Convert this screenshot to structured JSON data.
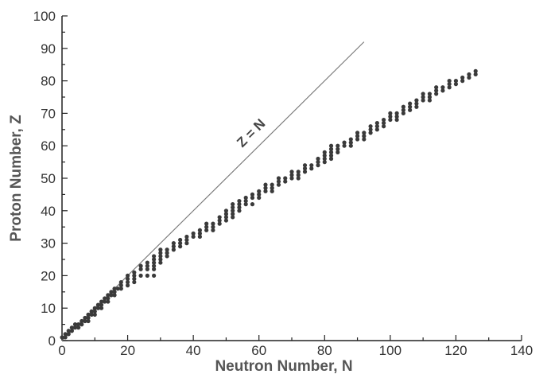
{
  "chart_data": {
    "type": "scatter",
    "title": "",
    "xlabel": "Neutron Number, N",
    "ylabel": "Proton Number, Z",
    "xlim": [
      0,
      140
    ],
    "ylim": [
      0,
      100
    ],
    "xticks": [
      "0",
      "20",
      "40",
      "60",
      "80",
      "100",
      "120",
      "140"
    ],
    "yticks": [
      "0",
      "10",
      "20",
      "30",
      "40",
      "50",
      "60",
      "70",
      "80",
      "90",
      "100"
    ],
    "grid": false,
    "reference_line": {
      "label": "Z = N",
      "from": [
        0,
        0
      ],
      "to": [
        92,
        92
      ]
    },
    "colors": {
      "points": "#3a3a3a",
      "reference_line": "#777777",
      "axis": "#222222"
    },
    "points": [
      [
        0,
        1
      ],
      [
        1,
        1
      ],
      [
        1,
        2
      ],
      [
        2,
        2
      ],
      [
        2,
        3
      ],
      [
        3,
        3
      ],
      [
        3,
        4
      ],
      [
        4,
        4
      ],
      [
        5,
        4
      ],
      [
        4,
        5
      ],
      [
        5,
        5
      ],
      [
        6,
        5
      ],
      [
        6,
        6
      ],
      [
        7,
        6
      ],
      [
        8,
        6
      ],
      [
        7,
        7
      ],
      [
        8,
        7
      ],
      [
        8,
        8
      ],
      [
        9,
        8
      ],
      [
        10,
        8
      ],
      [
        9,
        9
      ],
      [
        10,
        9
      ],
      [
        10,
        10
      ],
      [
        11,
        10
      ],
      [
        12,
        10
      ],
      [
        11,
        11
      ],
      [
        12,
        11
      ],
      [
        12,
        12
      ],
      [
        13,
        12
      ],
      [
        14,
        12
      ],
      [
        13,
        13
      ],
      [
        14,
        13
      ],
      [
        14,
        14
      ],
      [
        15,
        14
      ],
      [
        16,
        14
      ],
      [
        15,
        15
      ],
      [
        16,
        15
      ],
      [
        16,
        16
      ],
      [
        17,
        16
      ],
      [
        18,
        16
      ],
      [
        18,
        17
      ],
      [
        20,
        17
      ],
      [
        18,
        18
      ],
      [
        20,
        18
      ],
      [
        22,
        18
      ],
      [
        20,
        19
      ],
      [
        22,
        19
      ],
      [
        20,
        20
      ],
      [
        22,
        20
      ],
      [
        24,
        20
      ],
      [
        26,
        20
      ],
      [
        28,
        20
      ],
      [
        22,
        21
      ],
      [
        24,
        22
      ],
      [
        26,
        22
      ],
      [
        28,
        22
      ],
      [
        24,
        23
      ],
      [
        26,
        23
      ],
      [
        28,
        23
      ],
      [
        26,
        24
      ],
      [
        28,
        24
      ],
      [
        30,
        24
      ],
      [
        28,
        25
      ],
      [
        30,
        25
      ],
      [
        28,
        26
      ],
      [
        30,
        26
      ],
      [
        32,
        26
      ],
      [
        30,
        27
      ],
      [
        32,
        27
      ],
      [
        30,
        28
      ],
      [
        32,
        28
      ],
      [
        34,
        28
      ],
      [
        34,
        29
      ],
      [
        36,
        29
      ],
      [
        34,
        30
      ],
      [
        36,
        30
      ],
      [
        38,
        30
      ],
      [
        36,
        31
      ],
      [
        38,
        31
      ],
      [
        38,
        32
      ],
      [
        40,
        32
      ],
      [
        42,
        32
      ],
      [
        40,
        33
      ],
      [
        42,
        33
      ],
      [
        42,
        34
      ],
      [
        44,
        34
      ],
      [
        46,
        34
      ],
      [
        44,
        35
      ],
      [
        46,
        35
      ],
      [
        44,
        36
      ],
      [
        46,
        36
      ],
      [
        48,
        36
      ],
      [
        48,
        37
      ],
      [
        50,
        37
      ],
      [
        48,
        38
      ],
      [
        50,
        38
      ],
      [
        52,
        38
      ],
      [
        50,
        39
      ],
      [
        52,
        39
      ],
      [
        50,
        40
      ],
      [
        52,
        40
      ],
      [
        54,
        40
      ],
      [
        52,
        41
      ],
      [
        54,
        41
      ],
      [
        52,
        42
      ],
      [
        54,
        42
      ],
      [
        56,
        42
      ],
      [
        58,
        42
      ],
      [
        54,
        43
      ],
      [
        56,
        43
      ],
      [
        56,
        44
      ],
      [
        58,
        44
      ],
      [
        60,
        44
      ],
      [
        58,
        45
      ],
      [
        60,
        45
      ],
      [
        60,
        46
      ],
      [
        62,
        46
      ],
      [
        64,
        46
      ],
      [
        62,
        47
      ],
      [
        64,
        47
      ],
      [
        62,
        48
      ],
      [
        64,
        48
      ],
      [
        66,
        48
      ],
      [
        66,
        49
      ],
      [
        68,
        49
      ],
      [
        66,
        50
      ],
      [
        68,
        50
      ],
      [
        70,
        50
      ],
      [
        72,
        50
      ],
      [
        70,
        51
      ],
      [
        72,
        51
      ],
      [
        70,
        52
      ],
      [
        72,
        52
      ],
      [
        74,
        52
      ],
      [
        74,
        53
      ],
      [
        76,
        53
      ],
      [
        74,
        54
      ],
      [
        76,
        54
      ],
      [
        78,
        54
      ],
      [
        78,
        55
      ],
      [
        80,
        55
      ],
      [
        78,
        56
      ],
      [
        80,
        56
      ],
      [
        82,
        56
      ],
      [
        80,
        57
      ],
      [
        82,
        57
      ],
      [
        80,
        58
      ],
      [
        82,
        58
      ],
      [
        84,
        58
      ],
      [
        82,
        59
      ],
      [
        84,
        59
      ],
      [
        82,
        60
      ],
      [
        84,
        60
      ],
      [
        86,
        60
      ],
      [
        88,
        60
      ],
      [
        86,
        61
      ],
      [
        88,
        61
      ],
      [
        88,
        62
      ],
      [
        90,
        62
      ],
      [
        92,
        62
      ],
      [
        90,
        63
      ],
      [
        92,
        63
      ],
      [
        90,
        64
      ],
      [
        92,
        64
      ],
      [
        94,
        64
      ],
      [
        94,
        65
      ],
      [
        96,
        65
      ],
      [
        94,
        66
      ],
      [
        96,
        66
      ],
      [
        98,
        66
      ],
      [
        96,
        67
      ],
      [
        98,
        67
      ],
      [
        98,
        68
      ],
      [
        100,
        68
      ],
      [
        102,
        68
      ],
      [
        100,
        69
      ],
      [
        102,
        69
      ],
      [
        100,
        70
      ],
      [
        102,
        70
      ],
      [
        104,
        70
      ],
      [
        104,
        71
      ],
      [
        106,
        71
      ],
      [
        104,
        72
      ],
      [
        106,
        72
      ],
      [
        108,
        72
      ],
      [
        106,
        73
      ],
      [
        108,
        73
      ],
      [
        108,
        74
      ],
      [
        110,
        74
      ],
      [
        112,
        74
      ],
      [
        110,
        75
      ],
      [
        112,
        75
      ],
      [
        110,
        76
      ],
      [
        112,
        76
      ],
      [
        114,
        76
      ],
      [
        114,
        77
      ],
      [
        116,
        77
      ],
      [
        114,
        78
      ],
      [
        116,
        78
      ],
      [
        118,
        78
      ],
      [
        118,
        79
      ],
      [
        120,
        79
      ],
      [
        118,
        80
      ],
      [
        120,
        80
      ],
      [
        122,
        80
      ],
      [
        122,
        81
      ],
      [
        124,
        81
      ],
      [
        124,
        82
      ],
      [
        126,
        82
      ],
      [
        126,
        83
      ]
    ]
  }
}
